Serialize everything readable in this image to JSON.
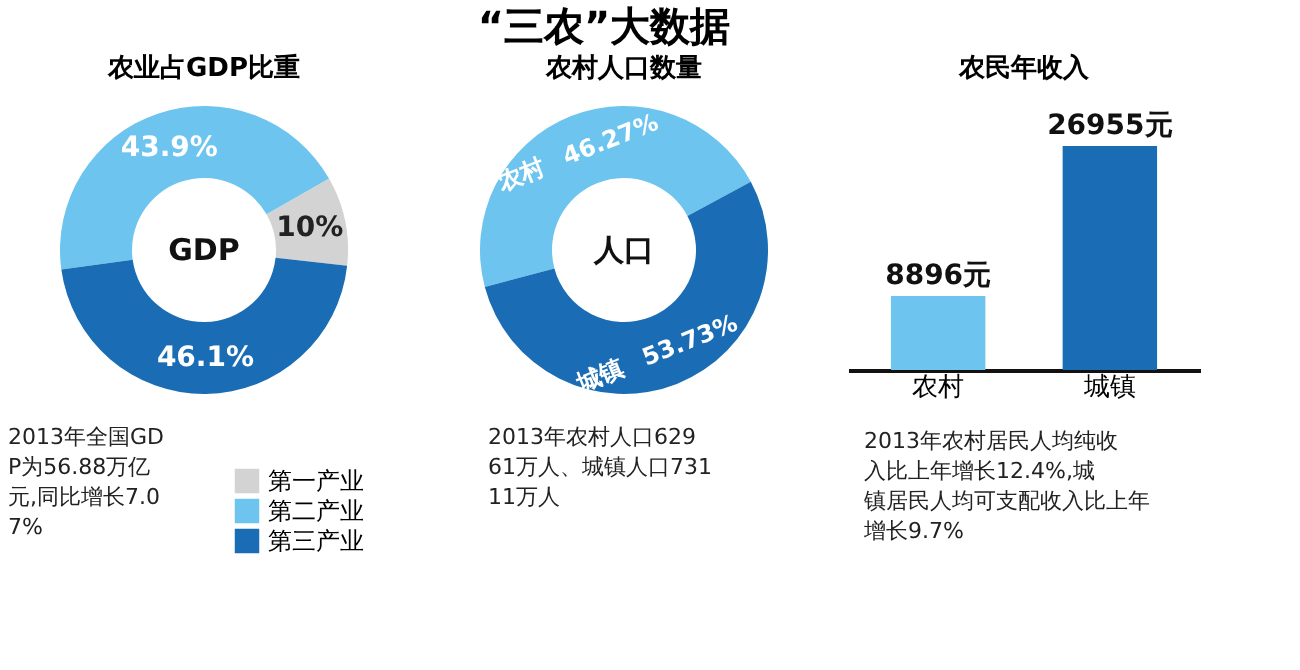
{
  "chart_data": [
    {
      "type": "other",
      "title": "“三农”大数据"
    },
    {
      "type": "donut",
      "title": "农业占GDP比重",
      "categories": [
        "第一产业",
        "第二产业",
        "第三产业"
      ],
      "values": [
        10,
        43.9,
        46.1
      ],
      "colors": [
        "#d3d3d3",
        "#6cc4ef",
        "#1a6db5"
      ],
      "value_labels": [
        "10%",
        "43.9%",
        "46.1%"
      ],
      "legend": "bottom right",
      "annotations": [
        "GDP",
        "2013年全国GDP为56.88万亿元,同比增长7.07%"
      ]
    },
    {
      "type": "donut",
      "title": "农村人口数量",
      "categories": [
        "农村",
        "城镇"
      ],
      "values": [
        46.27,
        53.73
      ],
      "colors": [
        "#6cc4ef",
        "#1a6db5"
      ],
      "value_labels": [
        "46.27%",
        "53.73%"
      ],
      "annotations": [
        "人口",
        "2013年农村人口62961万人、城镇人口73111万人"
      ]
    },
    {
      "type": "bar",
      "title": "农民年收入",
      "categories": [
        "农村",
        "城镇"
      ],
      "values": [
        8896,
        26955
      ],
      "colors": [
        "#6cc4ef",
        "#1a6db5"
      ],
      "value_labels": [
        "8896元",
        "26955元"
      ],
      "tick_labels": "x",
      "grid": false,
      "annotations": [
        "2013年农村居民人均纯收入比上年增长12.4%,城镇居民人均可支配收入比上年增长9.7%"
      ]
    }
  ]
}
